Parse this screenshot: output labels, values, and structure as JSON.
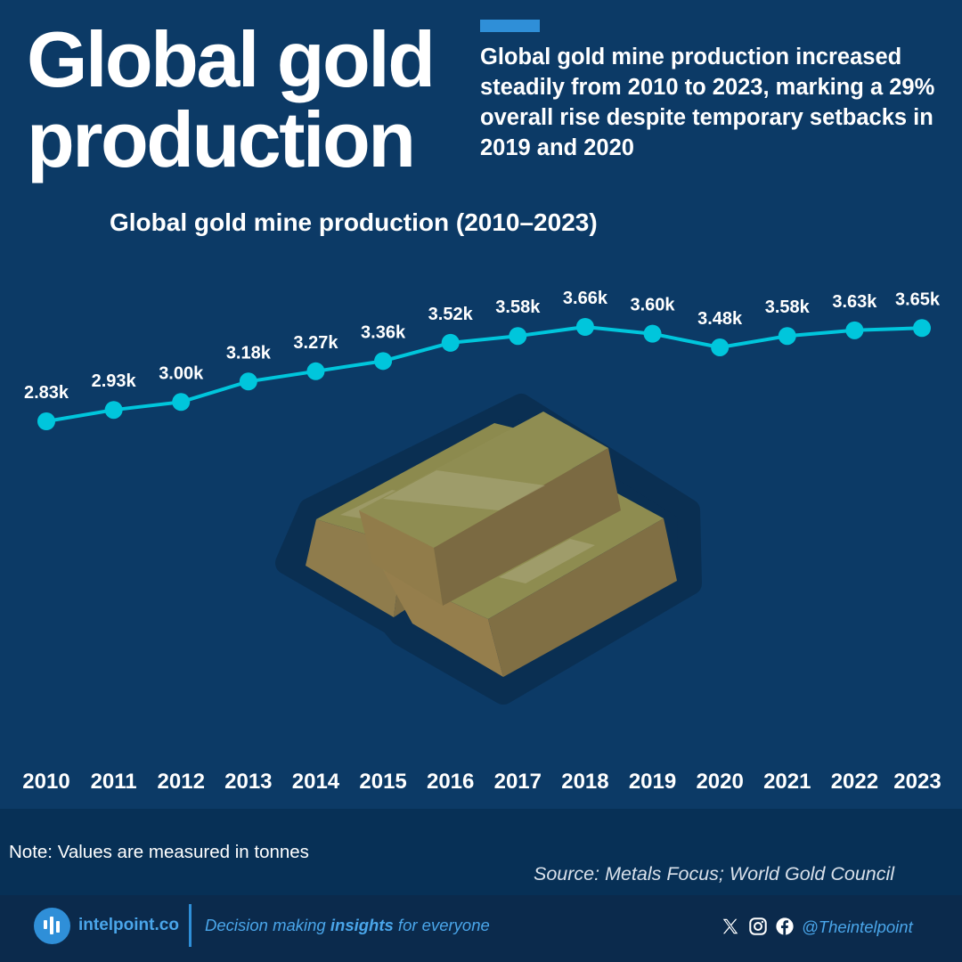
{
  "header": {
    "title_line1": "Global gold",
    "title_line2": "production",
    "subtitle": "Global gold mine production increased steadily from 2010 to 2023, marking a 29% overall rise despite temporary setbacks in 2019 and 2020"
  },
  "chart_data": {
    "type": "line",
    "title": "Global gold mine production (2010–2023)",
    "x": [
      "2010",
      "2011",
      "2012",
      "2013",
      "2014",
      "2015",
      "2016",
      "2017",
      "2018",
      "2019",
      "2020",
      "2021",
      "2022",
      "2023"
    ],
    "series": [
      {
        "values": [
          2830,
          2930,
          3000,
          3180,
          3270,
          3360,
          3520,
          3580,
          3660,
          3600,
          3480,
          3580,
          3630,
          3650
        ],
        "labels": [
          "2.83k",
          "2.93k",
          "3.00k",
          "3.18k",
          "3.27k",
          "3.36k",
          "3.52k",
          "3.58k",
          "3.66k",
          "3.60k",
          "3.48k",
          "3.58k",
          "3.63k",
          "3.65k"
        ],
        "color": "#00c6dc"
      }
    ],
    "xlabel": "",
    "ylabel": "",
    "grid": false,
    "y_axis_visible": false
  },
  "colors": {
    "background": "#0c3a66",
    "line": "#00c6dc",
    "accent": "#2f8fd8",
    "note_band": "#073056",
    "footer": "#0b2a4c"
  },
  "note": "Note: Values are measured in tonnes",
  "source": "Source: Metals Focus; World Gold Council",
  "footer": {
    "brand": "intelpoint.co",
    "tagline_pre": "Decision making ",
    "tagline_bold": "insights",
    "tagline_post": " for everyone",
    "handle": "@Theintelpoint",
    "icons": [
      "logo-icon",
      "x-icon",
      "instagram-icon",
      "facebook-icon"
    ]
  }
}
